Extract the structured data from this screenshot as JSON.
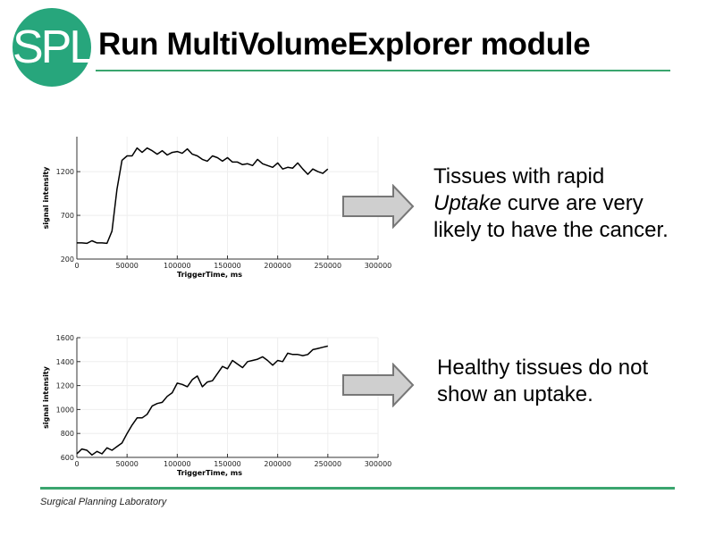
{
  "header": {
    "logo_text": "SPL",
    "title": "Run MultiVolumeExplorer module",
    "accent_color": "#27a67c"
  },
  "captions": {
    "top": {
      "line1": "Tissues with rapid",
      "line2_em": "Uptake",
      "line2_rest": " curve are very",
      "line3": "likely to have the cancer."
    },
    "bottom": {
      "line1": "Healthy tissues do not",
      "line2": "show an uptake."
    }
  },
  "footer": {
    "text": "Surgical Planning Laboratory"
  },
  "chart_data": [
    {
      "type": "line",
      "title": "",
      "xlabel": "TriggerTime, ms",
      "ylabel": "signal intensity",
      "xlim": [
        0,
        300000
      ],
      "ylim": [
        200,
        1600
      ],
      "xticks": [
        0,
        50000,
        100000,
        150000,
        200000,
        250000,
        300000
      ],
      "yticks": [
        200,
        700,
        1200
      ],
      "grid": true,
      "x": [
        0,
        5000,
        10000,
        15000,
        20000,
        25000,
        30000,
        35000,
        40000,
        45000,
        50000,
        55000,
        60000,
        65000,
        70000,
        75000,
        80000,
        85000,
        90000,
        95000,
        100000,
        105000,
        110000,
        115000,
        120000,
        125000,
        130000,
        135000,
        140000,
        145000,
        150000,
        155000,
        160000,
        165000,
        170000,
        175000,
        180000,
        185000,
        190000,
        195000,
        200000,
        205000,
        210000,
        215000,
        220000,
        225000,
        230000,
        235000,
        240000,
        245000,
        250000
      ],
      "values": [
        385,
        385,
        380,
        410,
        385,
        385,
        380,
        520,
        1000,
        1330,
        1380,
        1380,
        1470,
        1420,
        1470,
        1440,
        1400,
        1440,
        1390,
        1420,
        1430,
        1410,
        1460,
        1400,
        1380,
        1340,
        1320,
        1380,
        1360,
        1320,
        1360,
        1310,
        1310,
        1280,
        1290,
        1270,
        1340,
        1290,
        1270,
        1250,
        1300,
        1230,
        1250,
        1240,
        1300,
        1230,
        1170,
        1230,
        1200,
        1180,
        1230
      ]
    },
    {
      "type": "line",
      "title": "",
      "xlabel": "TriggerTime, ms",
      "ylabel": "signal intensity",
      "xlim": [
        0,
        300000
      ],
      "ylim": [
        600,
        1600
      ],
      "xticks": [
        0,
        50000,
        100000,
        150000,
        200000,
        250000,
        300000
      ],
      "yticks": [
        600,
        800,
        1000,
        1200,
        1400,
        1600
      ],
      "grid": true,
      "x": [
        0,
        5000,
        10000,
        15000,
        20000,
        25000,
        30000,
        35000,
        40000,
        45000,
        50000,
        55000,
        60000,
        65000,
        70000,
        75000,
        80000,
        85000,
        90000,
        95000,
        100000,
        105000,
        110000,
        115000,
        120000,
        125000,
        130000,
        135000,
        140000,
        145000,
        150000,
        155000,
        160000,
        165000,
        170000,
        175000,
        180000,
        185000,
        190000,
        195000,
        200000,
        205000,
        210000,
        215000,
        220000,
        225000,
        230000,
        235000,
        240000,
        245000,
        250000
      ],
      "values": [
        630,
        670,
        660,
        620,
        650,
        630,
        680,
        660,
        690,
        720,
        800,
        870,
        930,
        930,
        960,
        1030,
        1050,
        1060,
        1110,
        1140,
        1220,
        1210,
        1190,
        1250,
        1280,
        1190,
        1230,
        1240,
        1300,
        1360,
        1340,
        1410,
        1380,
        1350,
        1400,
        1410,
        1420,
        1440,
        1410,
        1370,
        1410,
        1400,
        1470,
        1460,
        1460,
        1450,
        1460,
        1500,
        1510,
        1520,
        1530
      ]
    }
  ]
}
